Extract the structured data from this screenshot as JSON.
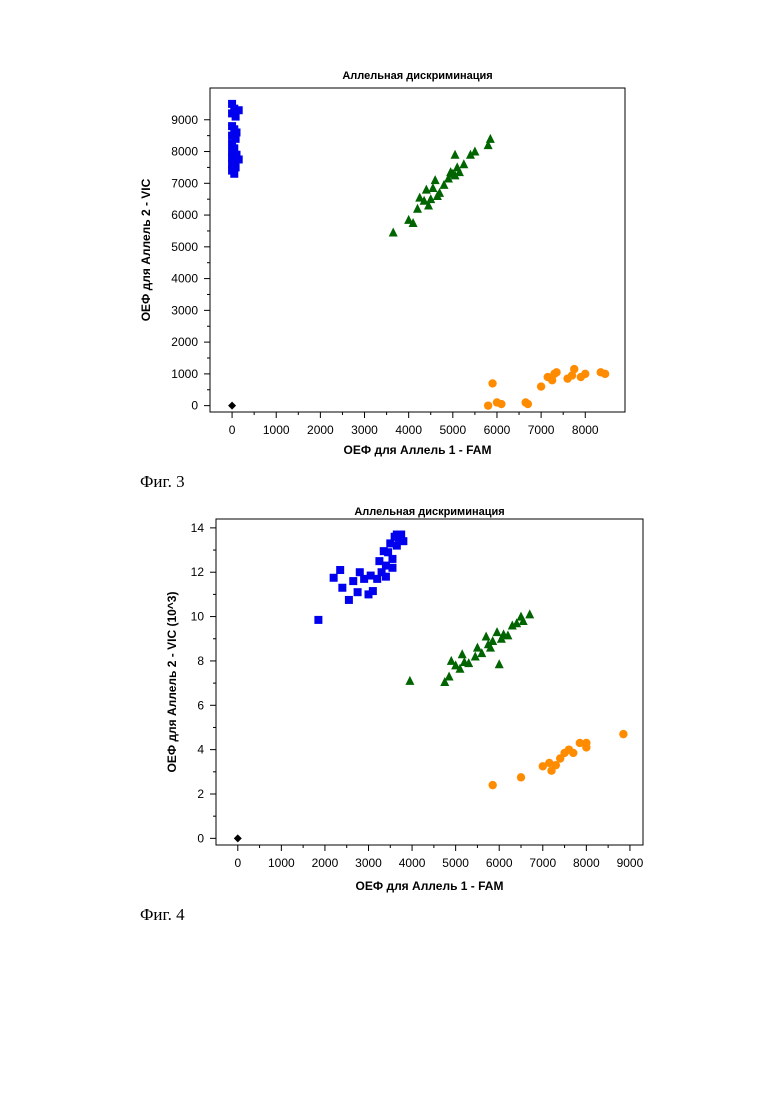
{
  "figures": [
    {
      "caption": "Фиг. 3"
    },
    {
      "caption": "Фиг. 4"
    }
  ],
  "colors": {
    "blue": "#0000ee",
    "green": "#006400",
    "orange": "#ff8c00",
    "black": "#000000"
  },
  "chart_data": [
    {
      "type": "scatter",
      "title": "Аллельная дискриминация",
      "xlabel": "ОЕФ для Аллель 1 - FAM",
      "ylabel": "ОЕФ для Аллель 2 - VIC",
      "xlim": [
        -500,
        8900
      ],
      "ylim": [
        -200,
        10000
      ],
      "xticks": [
        0,
        1000,
        2000,
        3000,
        4000,
        5000,
        6000,
        7000,
        8000
      ],
      "yticks": [
        0,
        1000,
        2000,
        3000,
        4000,
        5000,
        6000,
        7000,
        8000,
        9000
      ],
      "grid": false,
      "series": [
        {
          "marker": "square",
          "color": "blue",
          "points": [
            [
              0,
              9500
            ],
            [
              50,
              9350
            ],
            [
              150,
              9300
            ],
            [
              0,
              9200
            ],
            [
              80,
              9100
            ],
            [
              0,
              8800
            ],
            [
              50,
              8700
            ],
            [
              100,
              8600
            ],
            [
              0,
              8500
            ],
            [
              80,
              8400
            ],
            [
              0,
              8250
            ],
            [
              50,
              8100
            ],
            [
              0,
              8000
            ],
            [
              100,
              7900
            ],
            [
              0,
              7800
            ],
            [
              150,
              7750
            ],
            [
              50,
              7650
            ],
            [
              0,
              7600
            ],
            [
              80,
              7500
            ],
            [
              0,
              7400
            ],
            [
              50,
              7300
            ]
          ]
        },
        {
          "marker": "triangle",
          "color": "green",
          "points": [
            [
              3650,
              5450
            ],
            [
              4000,
              5850
            ],
            [
              4100,
              5750
            ],
            [
              4200,
              6200
            ],
            [
              4250,
              6550
            ],
            [
              4350,
              6450
            ],
            [
              4450,
              6300
            ],
            [
              4500,
              6500
            ],
            [
              4550,
              6850
            ],
            [
              4600,
              7100
            ],
            [
              4700,
              6700
            ],
            [
              4800,
              6950
            ],
            [
              4900,
              7150
            ],
            [
              5000,
              7300
            ],
            [
              5050,
              7250
            ],
            [
              5100,
              7500
            ],
            [
              5150,
              7350
            ],
            [
              5250,
              7600
            ],
            [
              5400,
              7900
            ],
            [
              5500,
              8000
            ],
            [
              5800,
              8200
            ],
            [
              5850,
              8400
            ],
            [
              4400,
              6800
            ],
            [
              4650,
              6600
            ],
            [
              4950,
              7350
            ],
            [
              5050,
              7900
            ]
          ]
        },
        {
          "marker": "circle",
          "color": "orange",
          "points": [
            [
              5800,
              0
            ],
            [
              5900,
              700
            ],
            [
              6000,
              100
            ],
            [
              6100,
              50
            ],
            [
              6650,
              100
            ],
            [
              6700,
              50
            ],
            [
              7000,
              600
            ],
            [
              7150,
              900
            ],
            [
              7250,
              800
            ],
            [
              7350,
              1050
            ],
            [
              7600,
              850
            ],
            [
              7750,
              1150
            ],
            [
              7900,
              900
            ],
            [
              8000,
              1000
            ],
            [
              8350,
              1050
            ],
            [
              8450,
              1000
            ],
            [
              7300,
              1000
            ],
            [
              7700,
              950
            ]
          ]
        },
        {
          "marker": "diamond",
          "color": "black",
          "points": [
            [
              0,
              0
            ]
          ]
        }
      ]
    },
    {
      "type": "scatter",
      "title": "Аллельная дискриминация",
      "xlabel": "ОЕФ для Аллель 1 - FAM",
      "ylabel": "ОЕФ для Аллель 2 - VIC (10^3)",
      "xlim": [
        -500,
        9300
      ],
      "ylim": [
        -0.3,
        14.4
      ],
      "xticks": [
        0,
        1000,
        2000,
        3000,
        4000,
        5000,
        6000,
        7000,
        8000,
        9000
      ],
      "yticks": [
        0,
        2,
        4,
        6,
        8,
        10,
        12,
        14
      ],
      "grid": false,
      "series": [
        {
          "marker": "square",
          "color": "blue",
          "points": [
            [
              1850,
              9.85
            ],
            [
              2200,
              11.75
            ],
            [
              2350,
              12.1
            ],
            [
              2400,
              11.3
            ],
            [
              2550,
              10.75
            ],
            [
              2650,
              11.6
            ],
            [
              2750,
              11.1
            ],
            [
              2800,
              12.0
            ],
            [
              2900,
              11.7
            ],
            [
              3000,
              11.0
            ],
            [
              3050,
              11.85
            ],
            [
              3100,
              11.15
            ],
            [
              3200,
              11.7
            ],
            [
              3250,
              12.5
            ],
            [
              3300,
              12.0
            ],
            [
              3350,
              12.95
            ],
            [
              3400,
              11.8
            ],
            [
              3450,
              12.9
            ],
            [
              3500,
              13.3
            ],
            [
              3550,
              12.6
            ],
            [
              3600,
              13.6
            ],
            [
              3650,
              13.2
            ],
            [
              3700,
              13.55
            ],
            [
              3750,
              13.7
            ],
            [
              3800,
              13.4
            ],
            [
              3400,
              12.3
            ],
            [
              3550,
              12.2
            ],
            [
              3650,
              13.7
            ]
          ]
        },
        {
          "marker": "triangle",
          "color": "green",
          "points": [
            [
              3950,
              7.1
            ],
            [
              4750,
              7.05
            ],
            [
              4850,
              7.3
            ],
            [
              4900,
              8.0
            ],
            [
              5000,
              7.8
            ],
            [
              5100,
              7.65
            ],
            [
              5150,
              8.3
            ],
            [
              5200,
              7.95
            ],
            [
              5300,
              7.9
            ],
            [
              5450,
              8.2
            ],
            [
              5500,
              8.6
            ],
            [
              5600,
              8.35
            ],
            [
              5700,
              9.1
            ],
            [
              5750,
              8.75
            ],
            [
              5850,
              8.9
            ],
            [
              5950,
              9.3
            ],
            [
              6000,
              7.85
            ],
            [
              6050,
              9.0
            ],
            [
              6200,
              9.15
            ],
            [
              6300,
              9.6
            ],
            [
              6400,
              9.7
            ],
            [
              6500,
              10.0
            ],
            [
              6700,
              10.1
            ],
            [
              5800,
              8.6
            ],
            [
              6100,
              9.2
            ],
            [
              6550,
              9.8
            ]
          ]
        },
        {
          "marker": "circle",
          "color": "orange",
          "points": [
            [
              5850,
              2.4
            ],
            [
              6500,
              2.75
            ],
            [
              7000,
              3.25
            ],
            [
              7150,
              3.4
            ],
            [
              7200,
              3.05
            ],
            [
              7300,
              3.3
            ],
            [
              7400,
              3.6
            ],
            [
              7500,
              3.85
            ],
            [
              7600,
              4.0
            ],
            [
              7700,
              3.85
            ],
            [
              7850,
              4.3
            ],
            [
              8000,
              4.1
            ],
            [
              8000,
              4.3
            ],
            [
              8850,
              4.7
            ]
          ]
        },
        {
          "marker": "diamond",
          "color": "black",
          "points": [
            [
              0,
              0
            ]
          ]
        }
      ]
    }
  ]
}
